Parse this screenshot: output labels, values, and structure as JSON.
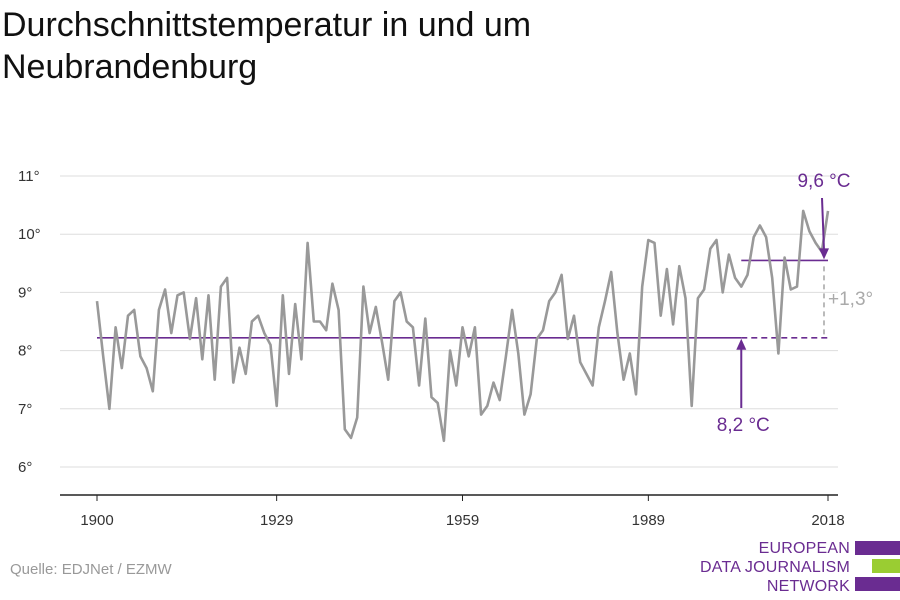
{
  "title": "Durchschnittstemperatur in und um\nNeubrandenburg",
  "source": "Quelle: EDJNet / EZMW",
  "logo": {
    "lines": [
      "EUROPEAN",
      "DATA JOURNALISM",
      "NETWORK"
    ],
    "colors": [
      "#6a2c91",
      "#9acd32",
      "#6a2c91"
    ]
  },
  "chart_data": {
    "type": "line",
    "xlim": [
      1900,
      2018
    ],
    "ylim": [
      5.5,
      11.2
    ],
    "x_ticks": [
      1900,
      1929,
      1959,
      1989,
      2018
    ],
    "x_tick_labels": [
      "1900",
      "1929",
      "1959",
      "1989",
      "2018"
    ],
    "y_ticks": [
      6,
      7,
      8,
      9,
      10,
      11
    ],
    "y_tick_labels": [
      "6°",
      "7°",
      "8°",
      "9°",
      "10°",
      "11°"
    ],
    "grid": true,
    "series": [
      {
        "color": "#999999",
        "x": [
          1900,
          1901,
          1902,
          1903,
          1904,
          1905,
          1906,
          1907,
          1908,
          1909,
          1910,
          1911,
          1912,
          1913,
          1914,
          1915,
          1916,
          1917,
          1918,
          1919,
          1920,
          1921,
          1922,
          1923,
          1924,
          1925,
          1926,
          1927,
          1928,
          1929,
          1930,
          1931,
          1932,
          1933,
          1934,
          1935,
          1936,
          1937,
          1938,
          1939,
          1940,
          1941,
          1942,
          1943,
          1944,
          1945,
          1946,
          1947,
          1948,
          1949,
          1950,
          1951,
          1952,
          1953,
          1954,
          1955,
          1956,
          1957,
          1958,
          1959,
          1960,
          1961,
          1962,
          1963,
          1964,
          1965,
          1966,
          1967,
          1968,
          1969,
          1970,
          1971,
          1972,
          1973,
          1974,
          1975,
          1976,
          1977,
          1978,
          1979,
          1980,
          1981,
          1982,
          1983,
          1984,
          1985,
          1986,
          1987,
          1988,
          1989,
          1990,
          1991,
          1992,
          1993,
          1994,
          1995,
          1996,
          1997,
          1998,
          1999,
          2000,
          2001,
          2002,
          2003,
          2004,
          2005,
          2006,
          2007,
          2008,
          2009,
          2010,
          2011,
          2012,
          2013,
          2014,
          2015,
          2016,
          2017,
          2018
        ],
        "y": [
          8.85,
          7.9,
          7.0,
          8.4,
          7.7,
          8.6,
          8.7,
          7.9,
          7.7,
          7.3,
          8.7,
          9.05,
          8.3,
          8.95,
          9.0,
          8.2,
          8.9,
          7.85,
          8.95,
          7.5,
          9.1,
          9.25,
          7.45,
          8.05,
          7.6,
          8.5,
          8.6,
          8.3,
          8.1,
          7.05,
          8.95,
          7.6,
          8.8,
          7.85,
          9.85,
          8.5,
          8.5,
          8.35,
          9.15,
          8.7,
          6.65,
          6.5,
          6.85,
          9.1,
          8.3,
          8.75,
          8.15,
          7.5,
          8.85,
          9.0,
          8.5,
          8.4,
          7.4,
          8.55,
          7.2,
          7.1,
          6.45,
          8.0,
          7.4,
          8.4,
          7.9,
          8.4,
          6.9,
          7.05,
          7.45,
          7.15,
          7.9,
          8.7,
          7.95,
          6.9,
          7.25,
          8.2,
          8.35,
          8.85,
          9.0,
          9.3,
          8.2,
          8.6,
          7.8,
          7.6,
          7.4,
          8.4,
          8.85,
          9.35,
          8.3,
          7.5,
          7.95,
          7.25,
          9.1,
          9.9,
          9.85,
          8.6,
          9.4,
          8.45,
          9.45,
          8.9,
          7.05,
          8.9,
          9.05,
          9.75,
          9.9,
          9.0,
          9.65,
          9.25,
          9.1,
          9.3,
          9.95,
          10.15,
          9.95,
          9.25,
          7.95,
          9.6,
          9.05,
          9.1,
          10.4,
          10.05,
          9.85,
          9.7,
          10.4
        ]
      }
    ],
    "reference_lines": [
      {
        "label": "8,2 °C",
        "value": 8.22,
        "from": 1900,
        "to": 2018,
        "dashed_from": 2004,
        "color": "#6a2c91"
      },
      {
        "label": "9,6 °C",
        "value": 9.55,
        "from": 2004,
        "to": 2018,
        "color": "#6a2c91"
      }
    ],
    "difference_label": "+1,3°"
  }
}
